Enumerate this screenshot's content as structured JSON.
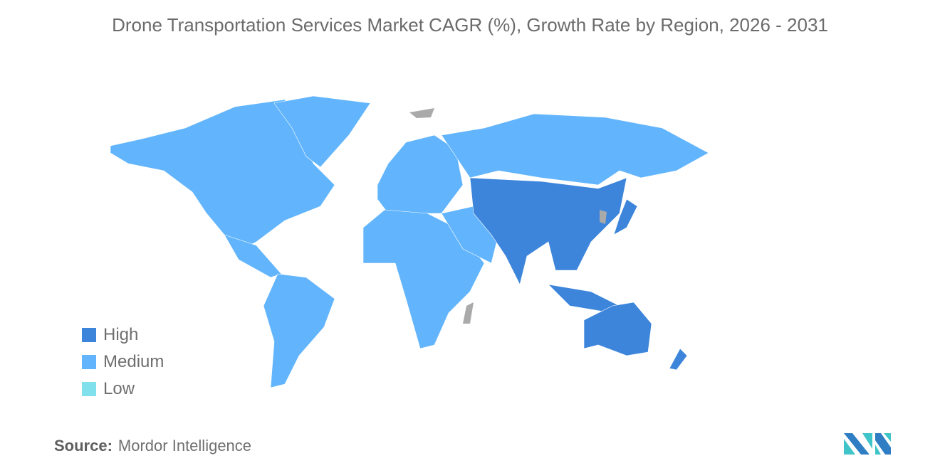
{
  "title": "Drone Transportation Services Market CAGR (%), Growth Rate by Region, 2026 - 2031",
  "legend": [
    {
      "label": "High",
      "color": "#3d85db"
    },
    {
      "label": "Medium",
      "color": "#62b5fc"
    },
    {
      "label": "Low",
      "color": "#80e0eb"
    }
  ],
  "no_data_color": "#aaaaaa",
  "regions": {
    "North America": "Medium",
    "South America": "Medium",
    "Europe": "Medium",
    "Middle East and Africa": "Medium",
    "Russia": "Medium",
    "Asia Pacific": "High"
  },
  "source": {
    "label": "Source:",
    "value": "Mordor Intelligence"
  }
}
